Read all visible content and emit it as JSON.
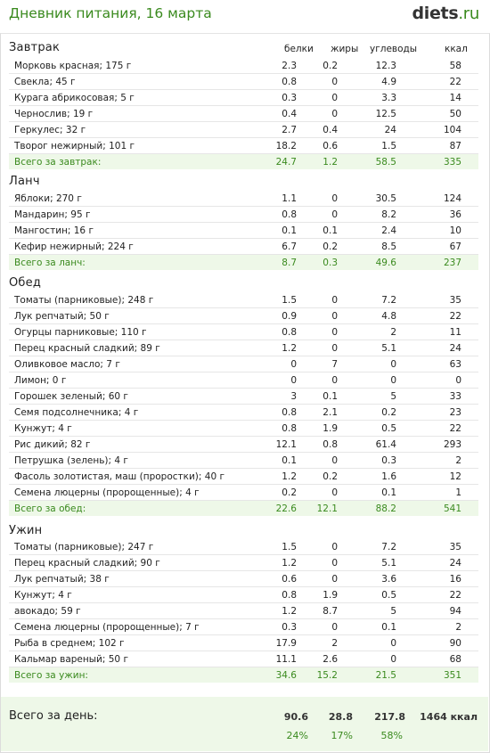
{
  "header": {
    "title": "Дневник питания, 16 марта",
    "logo_name": "diets",
    "logo_tld": ".ru"
  },
  "columns": {
    "protein": "белки",
    "fat": "жиры",
    "carbs": "углеводы",
    "kcal": "ккал"
  },
  "meals": [
    {
      "name": "Завтрак",
      "rows": [
        {
          "name": "Морковь красная; 175 г",
          "protein": "2.3",
          "fat": "0.2",
          "carbs": "12.3",
          "kcal": "58"
        },
        {
          "name": "Свекла; 45 г",
          "protein": "0.8",
          "fat": "0",
          "carbs": "4.9",
          "kcal": "22"
        },
        {
          "name": "Курага абрикосовая; 5 г",
          "protein": "0.3",
          "fat": "0",
          "carbs": "3.3",
          "kcal": "14"
        },
        {
          "name": "Чернослив; 19 г",
          "protein": "0.4",
          "fat": "0",
          "carbs": "12.5",
          "kcal": "50"
        },
        {
          "name": "Геркулес; 32 г",
          "protein": "2.7",
          "fat": "0.4",
          "carbs": "24",
          "kcal": "104"
        },
        {
          "name": "Творог нежирный; 101 г",
          "protein": "18.2",
          "fat": "0.6",
          "carbs": "1.5",
          "kcal": "87"
        }
      ],
      "total": {
        "name": "Всего за завтрак:",
        "protein": "24.7",
        "fat": "1.2",
        "carbs": "58.5",
        "kcal": "335"
      }
    },
    {
      "name": "Ланч",
      "rows": [
        {
          "name": "Яблоки; 270 г",
          "protein": "1.1",
          "fat": "0",
          "carbs": "30.5",
          "kcal": "124"
        },
        {
          "name": "Мандарин; 95 г",
          "protein": "0.8",
          "fat": "0",
          "carbs": "8.2",
          "kcal": "36"
        },
        {
          "name": "Мангостин; 16 г",
          "protein": "0.1",
          "fat": "0.1",
          "carbs": "2.4",
          "kcal": "10"
        },
        {
          "name": "Кефир нежирный; 224 г",
          "protein": "6.7",
          "fat": "0.2",
          "carbs": "8.5",
          "kcal": "67"
        }
      ],
      "total": {
        "name": "Всего за ланч:",
        "protein": "8.7",
        "fat": "0.3",
        "carbs": "49.6",
        "kcal": "237"
      }
    },
    {
      "name": "Обед",
      "rows": [
        {
          "name": "Томаты (парниковые); 248 г",
          "protein": "1.5",
          "fat": "0",
          "carbs": "7.2",
          "kcal": "35"
        },
        {
          "name": "Лук репчатый; 50 г",
          "protein": "0.9",
          "fat": "0",
          "carbs": "4.8",
          "kcal": "22"
        },
        {
          "name": "Огурцы парниковые; 110 г",
          "protein": "0.8",
          "fat": "0",
          "carbs": "2",
          "kcal": "11"
        },
        {
          "name": "Перец красный сладкий; 89 г",
          "protein": "1.2",
          "fat": "0",
          "carbs": "5.1",
          "kcal": "24"
        },
        {
          "name": "Оливковое масло; 7 г",
          "protein": "0",
          "fat": "7",
          "carbs": "0",
          "kcal": "63"
        },
        {
          "name": "Лимон; 0 г",
          "protein": "0",
          "fat": "0",
          "carbs": "0",
          "kcal": "0"
        },
        {
          "name": "Горошек зеленый; 60 г",
          "protein": "3",
          "fat": "0.1",
          "carbs": "5",
          "kcal": "33"
        },
        {
          "name": "Семя подсолнечника; 4 г",
          "protein": "0.8",
          "fat": "2.1",
          "carbs": "0.2",
          "kcal": "23"
        },
        {
          "name": "Кунжут; 4 г",
          "protein": "0.8",
          "fat": "1.9",
          "carbs": "0.5",
          "kcal": "22"
        },
        {
          "name": "Рис дикий; 82 г",
          "protein": "12.1",
          "fat": "0.8",
          "carbs": "61.4",
          "kcal": "293"
        },
        {
          "name": "Петрушка (зелень); 4 г",
          "protein": "0.1",
          "fat": "0",
          "carbs": "0.3",
          "kcal": "2"
        },
        {
          "name": "Фасоль золотистая, маш (проростки); 40 г",
          "protein": "1.2",
          "fat": "0.2",
          "carbs": "1.6",
          "kcal": "12"
        },
        {
          "name": "Семена люцерны (пророщенные); 4 г",
          "protein": "0.2",
          "fat": "0",
          "carbs": "0.1",
          "kcal": "1"
        }
      ],
      "total": {
        "name": "Всего за обед:",
        "protein": "22.6",
        "fat": "12.1",
        "carbs": "88.2",
        "kcal": "541"
      }
    },
    {
      "name": "Ужин",
      "rows": [
        {
          "name": "Томаты (парниковые); 247 г",
          "protein": "1.5",
          "fat": "0",
          "carbs": "7.2",
          "kcal": "35"
        },
        {
          "name": "Перец красный сладкий; 90 г",
          "protein": "1.2",
          "fat": "0",
          "carbs": "5.1",
          "kcal": "24"
        },
        {
          "name": "Лук репчатый; 38 г",
          "protein": "0.6",
          "fat": "0",
          "carbs": "3.6",
          "kcal": "16"
        },
        {
          "name": "Кунжут; 4 г",
          "protein": "0.8",
          "fat": "1.9",
          "carbs": "0.5",
          "kcal": "22"
        },
        {
          "name": "авокадо; 59 г",
          "protein": "1.2",
          "fat": "8.7",
          "carbs": "5",
          "kcal": "94"
        },
        {
          "name": "Семена люцерны (пророщенные); 7 г",
          "protein": "0.3",
          "fat": "0",
          "carbs": "0.1",
          "kcal": "2"
        },
        {
          "name": "Рыба в среднем; 102 г",
          "protein": "17.9",
          "fat": "2",
          "carbs": "0",
          "kcal": "90"
        },
        {
          "name": "Кальмар вареный; 50 г",
          "protein": "11.1",
          "fat": "2.6",
          "carbs": "0",
          "kcal": "68"
        }
      ],
      "total": {
        "name": "Всего за ужин:",
        "protein": "34.6",
        "fat": "15.2",
        "carbs": "21.5",
        "kcal": "351"
      }
    }
  ],
  "day_total": {
    "label": "Всего за день:",
    "protein": "90.6",
    "fat": "28.8",
    "carbs": "217.8",
    "kcal": "1464 ккал",
    "protein_pct": "24%",
    "fat_pct": "17%",
    "carbs_pct": "58%"
  },
  "colors": {
    "accent_green": "#3a8a1e",
    "total_row_bg": "#eef8e8",
    "row_border": "#e6e6e6"
  }
}
